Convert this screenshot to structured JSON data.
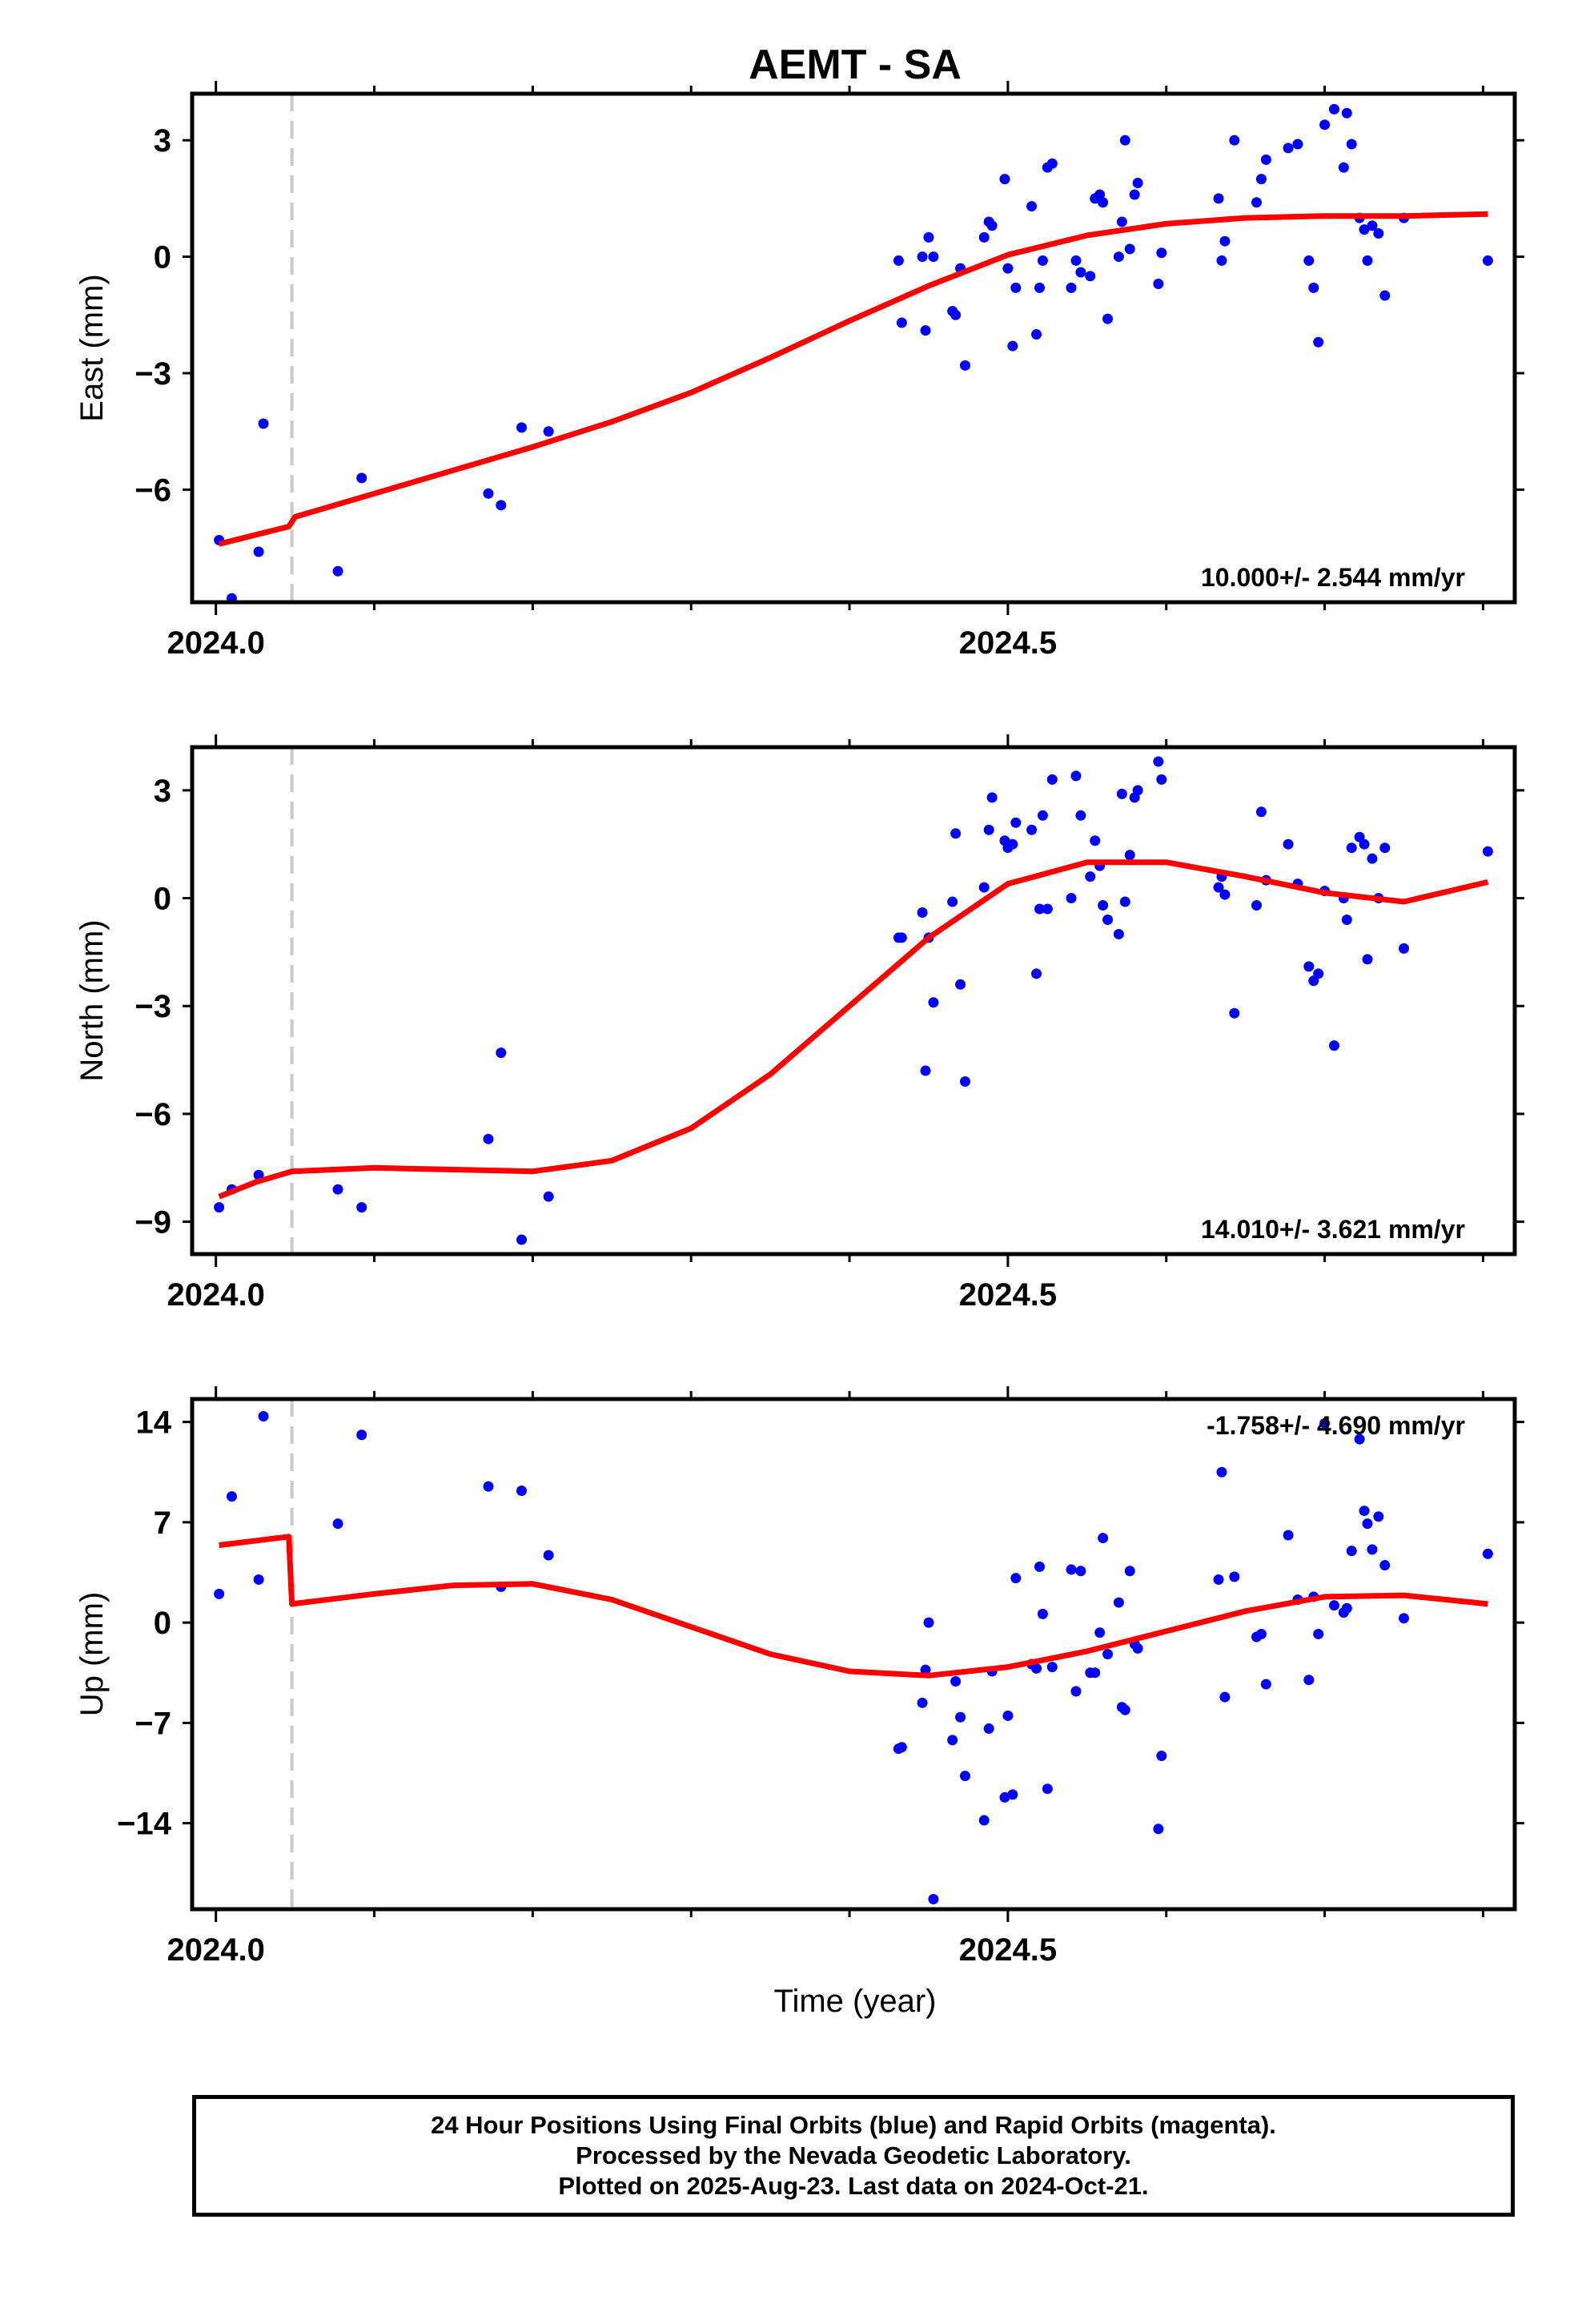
{
  "chart_data": {
    "type": "scatter",
    "title": "AEMT - SA",
    "xlabel": "Time (year)",
    "xlim": [
      2023.985,
      2024.82
    ],
    "x_ticks": [
      2024.0,
      2024.5
    ],
    "x_tick_labels": [
      "2024.0",
      "2024.5"
    ],
    "x_minor_ticks": [
      2024.1,
      2024.2,
      2024.3,
      2024.4,
      2024.6,
      2024.7,
      2024.8
    ],
    "marker_line_x": 2024.048,
    "panels": [
      {
        "name": "east",
        "ylabel": "East (mm)",
        "ylim": [
          -8.9,
          4.2
        ],
        "y_ticks": [
          3,
          0,
          -3,
          -6
        ],
        "y_tick_labels": [
          "3",
          "0",
          "−3",
          "−6"
        ],
        "rate_text": "10.000+/- 2.544 mm/yr",
        "rate_position": "bottom-right",
        "points": [
          [
            2024.002,
            -7.3
          ],
          [
            2024.01,
            -8.8
          ],
          [
            2024.027,
            -7.6
          ],
          [
            2024.03,
            -4.3
          ],
          [
            2024.077,
            -8.1
          ],
          [
            2024.092,
            -5.7
          ],
          [
            2024.172,
            -6.1
          ],
          [
            2024.18,
            -6.4
          ],
          [
            2024.193,
            -4.4
          ],
          [
            2024.21,
            -4.5
          ],
          [
            2024.431,
            -0.1
          ],
          [
            2024.433,
            -1.7
          ],
          [
            2024.446,
            0.0
          ],
          [
            2024.448,
            -1.9
          ],
          [
            2024.45,
            0.5
          ],
          [
            2024.453,
            0.0
          ],
          [
            2024.465,
            -1.4
          ],
          [
            2024.467,
            -1.5
          ],
          [
            2024.47,
            -0.3
          ],
          [
            2024.473,
            -2.8
          ],
          [
            2024.485,
            0.5
          ],
          [
            2024.488,
            0.9
          ],
          [
            2024.49,
            0.8
          ],
          [
            2024.498,
            2.0
          ],
          [
            2024.5,
            -0.3
          ],
          [
            2024.503,
            -2.3
          ],
          [
            2024.505,
            -0.8
          ],
          [
            2024.515,
            1.3
          ],
          [
            2024.518,
            -2.0
          ],
          [
            2024.52,
            -0.8
          ],
          [
            2024.522,
            -0.1
          ],
          [
            2024.525,
            2.3
          ],
          [
            2024.528,
            2.4
          ],
          [
            2024.54,
            -0.8
          ],
          [
            2024.543,
            -0.1
          ],
          [
            2024.546,
            -0.4
          ],
          [
            2024.552,
            -0.5
          ],
          [
            2024.555,
            1.5
          ],
          [
            2024.558,
            1.6
          ],
          [
            2024.56,
            1.4
          ],
          [
            2024.563,
            -1.6
          ],
          [
            2024.57,
            0.0
          ],
          [
            2024.572,
            0.9
          ],
          [
            2024.574,
            3.0
          ],
          [
            2024.577,
            0.2
          ],
          [
            2024.58,
            1.6
          ],
          [
            2024.582,
            1.9
          ],
          [
            2024.595,
            -0.7
          ],
          [
            2024.597,
            0.1
          ],
          [
            2024.633,
            1.5
          ],
          [
            2024.635,
            -0.1
          ],
          [
            2024.637,
            0.4
          ],
          [
            2024.643,
            3.0
          ],
          [
            2024.657,
            1.4
          ],
          [
            2024.66,
            2.0
          ],
          [
            2024.663,
            2.5
          ],
          [
            2024.677,
            2.8
          ],
          [
            2024.683,
            2.9
          ],
          [
            2024.69,
            -0.1
          ],
          [
            2024.693,
            -0.8
          ],
          [
            2024.696,
            -2.2
          ],
          [
            2024.7,
            3.4
          ],
          [
            2024.706,
            3.8
          ],
          [
            2024.712,
            2.3
          ],
          [
            2024.714,
            3.7
          ],
          [
            2024.717,
            2.9
          ],
          [
            2024.722,
            1.0
          ],
          [
            2024.725,
            0.7
          ],
          [
            2024.727,
            -0.1
          ],
          [
            2024.73,
            0.8
          ],
          [
            2024.734,
            0.6
          ],
          [
            2024.738,
            -1.0
          ],
          [
            2024.75,
            1.0
          ],
          [
            2024.803,
            -0.1
          ]
        ],
        "fit": [
          [
            2024.002,
            -7.4
          ],
          [
            2024.046,
            -6.95
          ],
          [
            2024.05,
            -6.7
          ],
          [
            2024.1,
            -6.1
          ],
          [
            2024.15,
            -5.5
          ],
          [
            2024.2,
            -4.9
          ],
          [
            2024.25,
            -4.25
          ],
          [
            2024.3,
            -3.5
          ],
          [
            2024.35,
            -2.6
          ],
          [
            2024.4,
            -1.65
          ],
          [
            2024.45,
            -0.75
          ],
          [
            2024.5,
            0.05
          ],
          [
            2024.55,
            0.55
          ],
          [
            2024.6,
            0.85
          ],
          [
            2024.65,
            1.0
          ],
          [
            2024.7,
            1.05
          ],
          [
            2024.75,
            1.05
          ],
          [
            2024.803,
            1.1
          ]
        ]
      },
      {
        "name": "north",
        "ylabel": "North (mm)",
        "ylim": [
          -9.9,
          4.2
        ],
        "y_ticks": [
          3,
          0,
          -3,
          -6,
          -9
        ],
        "y_tick_labels": [
          "3",
          "0",
          "−3",
          "−6",
          "−9"
        ],
        "rate_text": "14.010+/- 3.621 mm/yr",
        "rate_position": "bottom-right",
        "points": [
          [
            2024.002,
            -8.6
          ],
          [
            2024.01,
            -8.1
          ],
          [
            2024.027,
            -7.7
          ],
          [
            2024.077,
            -8.1
          ],
          [
            2024.092,
            -8.6
          ],
          [
            2024.172,
            -6.7
          ],
          [
            2024.18,
            -4.3
          ],
          [
            2024.193,
            -9.5
          ],
          [
            2024.21,
            -8.3
          ],
          [
            2024.431,
            -1.1
          ],
          [
            2024.433,
            -1.1
          ],
          [
            2024.446,
            -0.4
          ],
          [
            2024.448,
            -4.8
          ],
          [
            2024.45,
            -1.1
          ],
          [
            2024.453,
            -2.9
          ],
          [
            2024.465,
            -0.1
          ],
          [
            2024.467,
            1.8
          ],
          [
            2024.47,
            -2.4
          ],
          [
            2024.473,
            -5.1
          ],
          [
            2024.485,
            0.3
          ],
          [
            2024.488,
            1.9
          ],
          [
            2024.49,
            2.8
          ],
          [
            2024.498,
            1.6
          ],
          [
            2024.5,
            1.4
          ],
          [
            2024.503,
            1.5
          ],
          [
            2024.505,
            2.1
          ],
          [
            2024.515,
            1.9
          ],
          [
            2024.518,
            -2.1
          ],
          [
            2024.52,
            -0.3
          ],
          [
            2024.522,
            2.3
          ],
          [
            2024.525,
            -0.3
          ],
          [
            2024.528,
            3.3
          ],
          [
            2024.54,
            0.0
          ],
          [
            2024.543,
            3.4
          ],
          [
            2024.546,
            2.3
          ],
          [
            2024.552,
            0.6
          ],
          [
            2024.555,
            1.6
          ],
          [
            2024.558,
            0.9
          ],
          [
            2024.56,
            -0.2
          ],
          [
            2024.563,
            -0.6
          ],
          [
            2024.57,
            -1.0
          ],
          [
            2024.572,
            2.9
          ],
          [
            2024.574,
            -0.1
          ],
          [
            2024.577,
            1.2
          ],
          [
            2024.58,
            2.8
          ],
          [
            2024.582,
            3.0
          ],
          [
            2024.595,
            3.8
          ],
          [
            2024.597,
            3.3
          ],
          [
            2024.633,
            0.3
          ],
          [
            2024.635,
            0.6
          ],
          [
            2024.637,
            0.1
          ],
          [
            2024.643,
            -3.2
          ],
          [
            2024.657,
            -0.2
          ],
          [
            2024.66,
            2.4
          ],
          [
            2024.663,
            0.5
          ],
          [
            2024.677,
            1.5
          ],
          [
            2024.683,
            0.4
          ],
          [
            2024.69,
            -1.9
          ],
          [
            2024.693,
            -2.3
          ],
          [
            2024.696,
            -2.1
          ],
          [
            2024.7,
            0.2
          ],
          [
            2024.706,
            -4.1
          ],
          [
            2024.712,
            0.0
          ],
          [
            2024.714,
            -0.6
          ],
          [
            2024.717,
            1.4
          ],
          [
            2024.722,
            1.7
          ],
          [
            2024.725,
            1.5
          ],
          [
            2024.727,
            -1.7
          ],
          [
            2024.73,
            1.1
          ],
          [
            2024.734,
            0.0
          ],
          [
            2024.738,
            1.4
          ],
          [
            2024.75,
            -1.4
          ],
          [
            2024.803,
            1.3
          ]
        ],
        "fit": [
          [
            2024.002,
            -8.3
          ],
          [
            2024.025,
            -7.9
          ],
          [
            2024.048,
            -7.6
          ],
          [
            2024.1,
            -7.5
          ],
          [
            2024.15,
            -7.55
          ],
          [
            2024.2,
            -7.6
          ],
          [
            2024.25,
            -7.3
          ],
          [
            2024.3,
            -6.4
          ],
          [
            2024.35,
            -4.9
          ],
          [
            2024.4,
            -3.0
          ],
          [
            2024.45,
            -1.1
          ],
          [
            2024.5,
            0.4
          ],
          [
            2024.55,
            1.0
          ],
          [
            2024.6,
            1.0
          ],
          [
            2024.65,
            0.6
          ],
          [
            2024.7,
            0.15
          ],
          [
            2024.75,
            -0.1
          ],
          [
            2024.803,
            0.45
          ]
        ]
      },
      {
        "name": "up",
        "ylabel": "Up (mm)",
        "ylim": [
          -20,
          15.6
        ],
        "y_ticks": [
          14,
          7,
          0,
          -7,
          -14
        ],
        "y_tick_labels": [
          "14",
          "7",
          "0",
          "−7",
          "−14"
        ],
        "rate_text": "-1.758+/- 4.690 mm/yr",
        "rate_position": "top-right",
        "points": [
          [
            2024.002,
            2.0
          ],
          [
            2024.01,
            8.8
          ],
          [
            2024.027,
            3.0
          ],
          [
            2024.03,
            14.4
          ],
          [
            2024.077,
            6.9
          ],
          [
            2024.092,
            13.1
          ],
          [
            2024.172,
            9.5
          ],
          [
            2024.18,
            2.5
          ],
          [
            2024.193,
            9.2
          ],
          [
            2024.21,
            4.7
          ],
          [
            2024.431,
            -8.8
          ],
          [
            2024.433,
            -8.7
          ],
          [
            2024.446,
            -5.6
          ],
          [
            2024.448,
            -3.3
          ],
          [
            2024.45,
            0.0
          ],
          [
            2024.453,
            -19.3
          ],
          [
            2024.465,
            -8.2
          ],
          [
            2024.467,
            -4.1
          ],
          [
            2024.47,
            -6.6
          ],
          [
            2024.473,
            -10.7
          ],
          [
            2024.485,
            -13.8
          ],
          [
            2024.488,
            -7.4
          ],
          [
            2024.49,
            -3.4
          ],
          [
            2024.498,
            -12.2
          ],
          [
            2024.5,
            -6.5
          ],
          [
            2024.503,
            -12.0
          ],
          [
            2024.505,
            3.1
          ],
          [
            2024.515,
            -2.9
          ],
          [
            2024.518,
            -3.2
          ],
          [
            2024.52,
            3.9
          ],
          [
            2024.522,
            0.6
          ],
          [
            2024.525,
            -11.6
          ],
          [
            2024.528,
            -3.1
          ],
          [
            2024.54,
            3.7
          ],
          [
            2024.543,
            -4.8
          ],
          [
            2024.546,
            3.6
          ],
          [
            2024.552,
            -3.5
          ],
          [
            2024.555,
            -3.5
          ],
          [
            2024.558,
            -0.7
          ],
          [
            2024.56,
            5.9
          ],
          [
            2024.563,
            -2.2
          ],
          [
            2024.57,
            1.4
          ],
          [
            2024.572,
            -5.9
          ],
          [
            2024.574,
            -6.1
          ],
          [
            2024.577,
            3.6
          ],
          [
            2024.58,
            -1.5
          ],
          [
            2024.582,
            -1.8
          ],
          [
            2024.595,
            -14.4
          ],
          [
            2024.597,
            -9.3
          ],
          [
            2024.633,
            3.0
          ],
          [
            2024.635,
            10.5
          ],
          [
            2024.637,
            -5.2
          ],
          [
            2024.643,
            3.2
          ],
          [
            2024.657,
            -1.0
          ],
          [
            2024.66,
            -0.8
          ],
          [
            2024.663,
            -4.3
          ],
          [
            2024.677,
            6.1
          ],
          [
            2024.683,
            1.6
          ],
          [
            2024.69,
            -4.0
          ],
          [
            2024.693,
            1.8
          ],
          [
            2024.696,
            -0.8
          ],
          [
            2024.7,
            13.9
          ],
          [
            2024.706,
            1.2
          ],
          [
            2024.712,
            0.7
          ],
          [
            2024.714,
            1.0
          ],
          [
            2024.717,
            5.0
          ],
          [
            2024.722,
            12.8
          ],
          [
            2024.725,
            7.8
          ],
          [
            2024.727,
            6.9
          ],
          [
            2024.73,
            5.1
          ],
          [
            2024.734,
            7.4
          ],
          [
            2024.738,
            4.0
          ],
          [
            2024.75,
            0.3
          ],
          [
            2024.803,
            4.8
          ]
        ],
        "fit": [
          [
            2024.002,
            5.4
          ],
          [
            2024.046,
            6.0
          ],
          [
            2024.048,
            1.3
          ],
          [
            2024.1,
            2.0
          ],
          [
            2024.15,
            2.6
          ],
          [
            2024.2,
            2.7
          ],
          [
            2024.25,
            1.6
          ],
          [
            2024.3,
            -0.3
          ],
          [
            2024.35,
            -2.2
          ],
          [
            2024.4,
            -3.4
          ],
          [
            2024.45,
            -3.7
          ],
          [
            2024.5,
            -3.1
          ],
          [
            2024.55,
            -2.0
          ],
          [
            2024.6,
            -0.6
          ],
          [
            2024.65,
            0.8
          ],
          [
            2024.7,
            1.8
          ],
          [
            2024.75,
            1.9
          ],
          [
            2024.803,
            1.3
          ]
        ]
      }
    ]
  },
  "footer": {
    "line1": "24 Hour Positions Using Final Orbits (blue) and Rapid Orbits (magenta).",
    "line2": "Processed by the Nevada Geodetic Laboratory.",
    "line3": "Plotted on 2025-Aug-23. Last data on 2024-Oct-21."
  }
}
